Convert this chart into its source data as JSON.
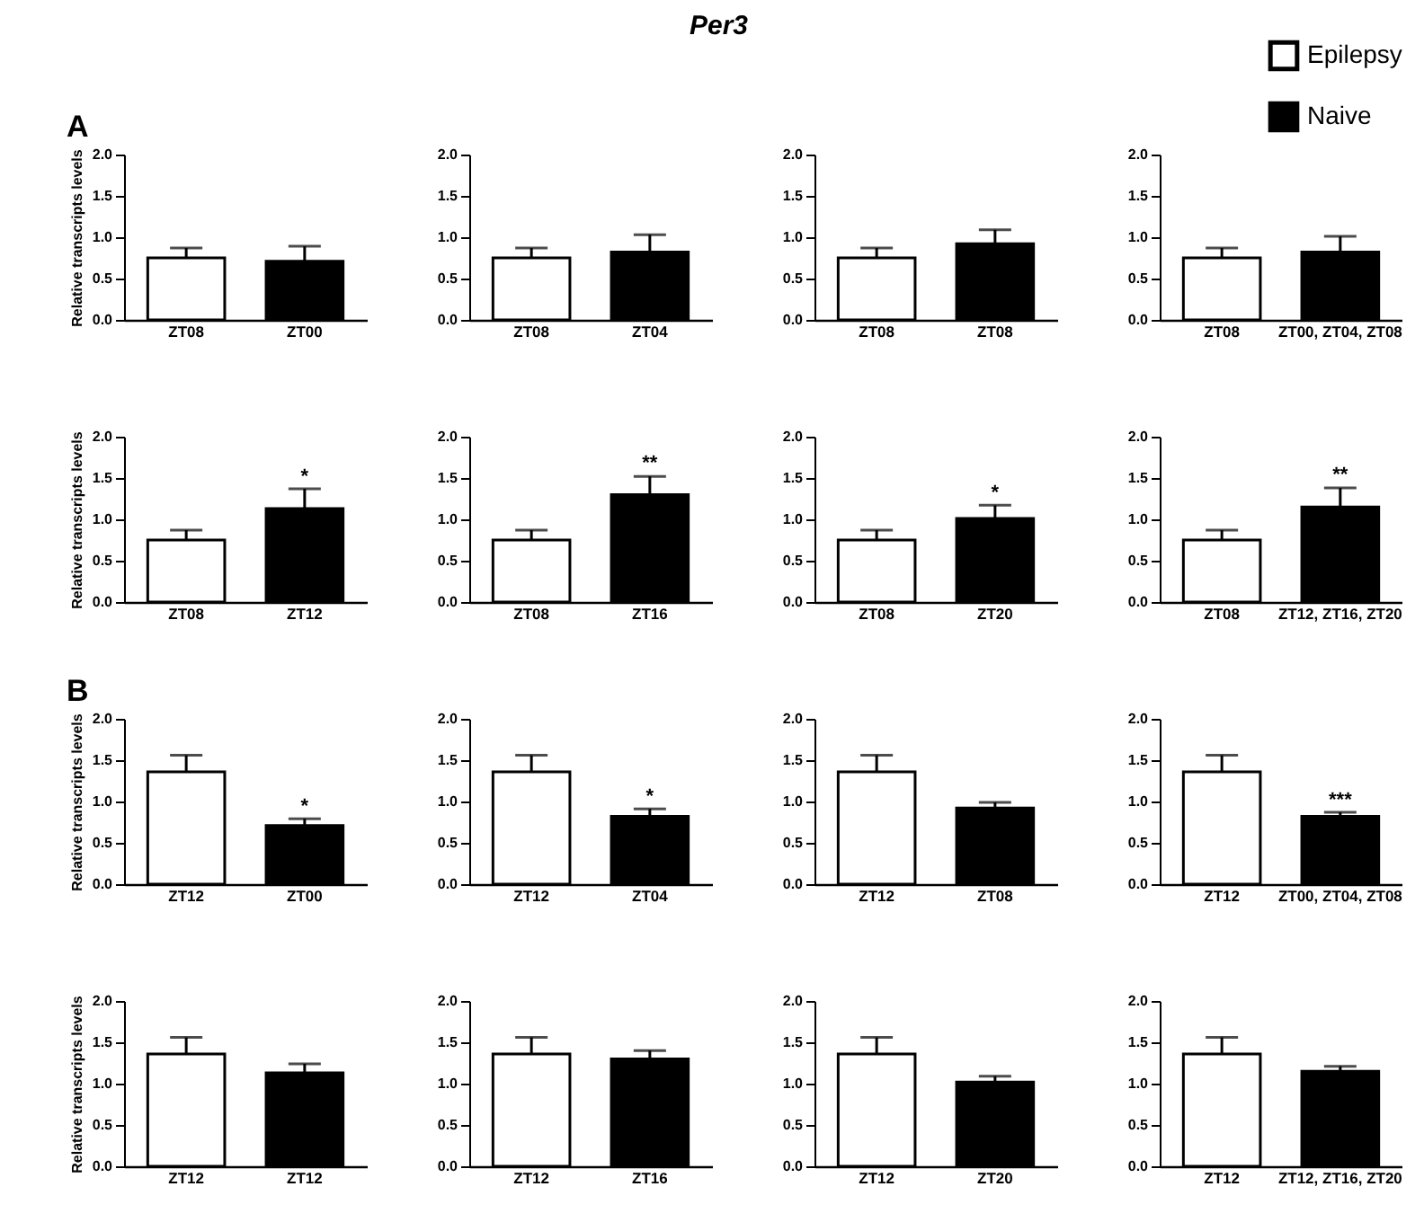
{
  "chart_data": [
    {
      "type": "bar",
      "annotations": [
        "A"
      ],
      "ylabel": "Relative transcripts levels",
      "categories": [
        "ZT08",
        "ZT00"
      ],
      "ylim": [
        0,
        2
      ],
      "yticks": [
        {
          "value": 0,
          "label": "0.0"
        },
        {
          "value": 0.5,
          "label": "0.5"
        },
        {
          "value": 1,
          "label": "1.0"
        },
        {
          "value": 1.5,
          "label": "1.5"
        },
        {
          "value": 2,
          "label": "2.0"
        }
      ],
      "series": [
        {
          "color": "#ffffff",
          "values": [
            0.75,
            null
          ],
          "errors": [
            [
              0.75,
              0.87
            ],
            null
          ]
        },
        {
          "color": "#000000",
          "values": [
            null,
            0.71
          ],
          "errors": [
            null,
            [
              0.71,
              0.89
            ]
          ]
        }
      ]
    },
    {
      "type": "bar",
      "title": "Per3",
      "categories": [
        "ZT08",
        "ZT04"
      ],
      "ylim": [
        0,
        2
      ],
      "yticks": [
        {
          "value": 0,
          "label": "0.0"
        },
        {
          "value": 0.5,
          "label": "0.5"
        },
        {
          "value": 1,
          "label": "1.0"
        },
        {
          "value": 1.5,
          "label": "1.5"
        },
        {
          "value": 2,
          "label": "2.0"
        }
      ],
      "series": [
        {
          "color": "#ffffff",
          "values": [
            0.75,
            null
          ],
          "errors": [
            [
              0.75,
              0.87
            ],
            null
          ]
        },
        {
          "color": "#000000",
          "values": [
            null,
            0.82
          ],
          "errors": [
            null,
            [
              0.82,
              1.03
            ]
          ]
        }
      ]
    },
    {
      "type": "bar",
      "categories": [
        "ZT08",
        "ZT08"
      ],
      "ylim": [
        0,
        2
      ],
      "yticks": [
        {
          "value": 0,
          "label": "0.0"
        },
        {
          "value": 0.5,
          "label": "0.5"
        },
        {
          "value": 1,
          "label": "1.0"
        },
        {
          "value": 1.5,
          "label": "1.5"
        },
        {
          "value": 2,
          "label": "2.0"
        }
      ],
      "series": [
        {
          "color": "#ffffff",
          "values": [
            0.75,
            null
          ],
          "errors": [
            [
              0.75,
              0.87
            ],
            null
          ]
        },
        {
          "color": "#000000",
          "values": [
            null,
            0.92
          ],
          "errors": [
            null,
            [
              0.92,
              1.09
            ]
          ]
        }
      ]
    },
    {
      "type": "bar",
      "categories": [
        "ZT08",
        "ZT00, ZT04, ZT08"
      ],
      "ylim": [
        0,
        2
      ],
      "yticks": [
        {
          "value": 0,
          "label": "0.0"
        },
        {
          "value": 0.5,
          "label": "0.5"
        },
        {
          "value": 1,
          "label": "1.0"
        },
        {
          "value": 1.5,
          "label": "1.5"
        },
        {
          "value": 2,
          "label": "2.0"
        }
      ],
      "legend": "top right",
      "series": [
        {
          "name": "Epilepsy",
          "color": "#ffffff",
          "values": [
            0.75,
            null
          ],
          "errors": [
            [
              0.75,
              0.87
            ],
            null
          ]
        },
        {
          "name": "Naive",
          "color": "#000000",
          "values": [
            null,
            0.82
          ],
          "errors": [
            null,
            [
              0.82,
              1.01
            ]
          ]
        }
      ]
    },
    {
      "type": "bar",
      "ylabel": "Relative transcripts levels",
      "categories": [
        "ZT08",
        "ZT12"
      ],
      "ylim": [
        0,
        2
      ],
      "yticks": [
        {
          "value": 0,
          "label": "0.0"
        },
        {
          "value": 0.5,
          "label": "0.5"
        },
        {
          "value": 1,
          "label": "1.0"
        },
        {
          "value": 1.5,
          "label": "1.5"
        },
        {
          "value": 2,
          "label": "2.0"
        }
      ],
      "annotations": [
        {
          "text": "*",
          "x": "ZT12",
          "y": 1.4
        }
      ],
      "series": [
        {
          "color": "#ffffff",
          "values": [
            0.75,
            null
          ],
          "errors": [
            [
              0.75,
              0.87
            ],
            null
          ]
        },
        {
          "color": "#000000",
          "values": [
            null,
            1.13
          ],
          "errors": [
            null,
            [
              1.13,
              1.37
            ]
          ]
        }
      ]
    },
    {
      "type": "bar",
      "categories": [
        "ZT08",
        "ZT16"
      ],
      "ylim": [
        0,
        2
      ],
      "yticks": [
        {
          "value": 0,
          "label": "0.0"
        },
        {
          "value": 0.5,
          "label": "0.5"
        },
        {
          "value": 1,
          "label": "1.0"
        },
        {
          "value": 1.5,
          "label": "1.5"
        },
        {
          "value": 2,
          "label": "2.0"
        }
      ],
      "annotations": [
        {
          "text": "**",
          "x": "ZT16",
          "y": 1.56
        }
      ],
      "series": [
        {
          "color": "#ffffff",
          "values": [
            0.75,
            null
          ],
          "errors": [
            [
              0.75,
              0.87
            ],
            null
          ]
        },
        {
          "color": "#000000",
          "values": [
            null,
            1.3
          ],
          "errors": [
            null,
            [
              1.3,
              1.52
            ]
          ]
        }
      ]
    },
    {
      "type": "bar",
      "categories": [
        "ZT08",
        "ZT20"
      ],
      "ylim": [
        0,
        2
      ],
      "yticks": [
        {
          "value": 0,
          "label": "0.0"
        },
        {
          "value": 0.5,
          "label": "0.5"
        },
        {
          "value": 1,
          "label": "1.0"
        },
        {
          "value": 1.5,
          "label": "1.5"
        },
        {
          "value": 2,
          "label": "2.0"
        }
      ],
      "annotations": [
        {
          "text": "*",
          "x": "ZT20",
          "y": 1.21
        }
      ],
      "series": [
        {
          "color": "#ffffff",
          "values": [
            0.75,
            null
          ],
          "errors": [
            [
              0.75,
              0.87
            ],
            null
          ]
        },
        {
          "color": "#000000",
          "values": [
            null,
            1.01
          ],
          "errors": [
            null,
            [
              1.01,
              1.17
            ]
          ]
        }
      ]
    },
    {
      "type": "bar",
      "categories": [
        "ZT08",
        "ZT12, ZT16, ZT20"
      ],
      "ylim": [
        0,
        2
      ],
      "yticks": [
        {
          "value": 0,
          "label": "0.0"
        },
        {
          "value": 0.5,
          "label": "0.5"
        },
        {
          "value": 1,
          "label": "1.0"
        },
        {
          "value": 1.5,
          "label": "1.5"
        },
        {
          "value": 2,
          "label": "2.0"
        }
      ],
      "annotations": [
        {
          "text": "**",
          "x": "ZT12, ZT16, ZT20",
          "y": 1.42
        }
      ],
      "series": [
        {
          "color": "#ffffff",
          "values": [
            0.75,
            null
          ],
          "errors": [
            [
              0.75,
              0.87
            ],
            null
          ]
        },
        {
          "color": "#000000",
          "values": [
            null,
            1.15
          ],
          "errors": [
            null,
            [
              1.15,
              1.38
            ]
          ]
        }
      ]
    },
    {
      "type": "bar",
      "annotations": [
        "B",
        {
          "text": "*",
          "x": "ZT00",
          "y": 0.83
        }
      ],
      "ylabel": "Relative transcripts levels",
      "categories": [
        "ZT12",
        "ZT00"
      ],
      "ylim": [
        0,
        2
      ],
      "yticks": [
        {
          "value": 0,
          "label": "0.0"
        },
        {
          "value": 0.5,
          "label": "0.5"
        },
        {
          "value": 1,
          "label": "1.0"
        },
        {
          "value": 1.5,
          "label": "1.5"
        },
        {
          "value": 2,
          "label": "2.0"
        }
      ],
      "series": [
        {
          "color": "#ffffff",
          "values": [
            1.36,
            null
          ],
          "errors": [
            [
              1.36,
              1.56
            ],
            null
          ]
        },
        {
          "color": "#000000",
          "values": [
            null,
            0.71
          ],
          "errors": [
            null,
            [
              0.71,
              0.79
            ]
          ]
        }
      ]
    },
    {
      "type": "bar",
      "categories": [
        "ZT12",
        "ZT04"
      ],
      "ylim": [
        0,
        2
      ],
      "yticks": [
        {
          "value": 0,
          "label": "0.0"
        },
        {
          "value": 0.5,
          "label": "0.5"
        },
        {
          "value": 1,
          "label": "1.0"
        },
        {
          "value": 1.5,
          "label": "1.5"
        },
        {
          "value": 2,
          "label": "2.0"
        }
      ],
      "annotations": [
        {
          "text": "*",
          "x": "ZT04",
          "y": 0.95
        }
      ],
      "series": [
        {
          "color": "#ffffff",
          "values": [
            1.36,
            null
          ],
          "errors": [
            [
              1.36,
              1.56
            ],
            null
          ]
        },
        {
          "color": "#000000",
          "values": [
            null,
            0.82
          ],
          "errors": [
            null,
            [
              0.82,
              0.91
            ]
          ]
        }
      ]
    },
    {
      "type": "bar",
      "categories": [
        "ZT12",
        "ZT08"
      ],
      "ylim": [
        0,
        2
      ],
      "yticks": [
        {
          "value": 0,
          "label": "0.0"
        },
        {
          "value": 0.5,
          "label": "0.5"
        },
        {
          "value": 1,
          "label": "1.0"
        },
        {
          "value": 1.5,
          "label": "1.5"
        },
        {
          "value": 2,
          "label": "2.0"
        }
      ],
      "series": [
        {
          "color": "#ffffff",
          "values": [
            1.36,
            null
          ],
          "errors": [
            [
              1.36,
              1.56
            ],
            null
          ]
        },
        {
          "color": "#000000",
          "values": [
            null,
            0.92
          ],
          "errors": [
            null,
            [
              0.92,
              0.99
            ]
          ]
        }
      ]
    },
    {
      "type": "bar",
      "categories": [
        "ZT12",
        "ZT00, ZT04, ZT08"
      ],
      "ylim": [
        0,
        2
      ],
      "yticks": [
        {
          "value": 0,
          "label": "0.0"
        },
        {
          "value": 0.5,
          "label": "0.5"
        },
        {
          "value": 1,
          "label": "1.0"
        },
        {
          "value": 1.5,
          "label": "1.5"
        },
        {
          "value": 2,
          "label": "2.0"
        }
      ],
      "annotations": [
        {
          "text": "***",
          "x": "ZT00, ZT04, ZT08",
          "y": 0.9
        }
      ],
      "series": [
        {
          "color": "#ffffff",
          "values": [
            1.36,
            null
          ],
          "errors": [
            [
              1.36,
              1.56
            ],
            null
          ]
        },
        {
          "color": "#000000",
          "values": [
            null,
            0.82
          ],
          "errors": [
            null,
            [
              0.82,
              0.87
            ]
          ]
        }
      ]
    },
    {
      "type": "bar",
      "ylabel": "Relative transcripts levels",
      "categories": [
        "ZT12",
        "ZT12"
      ],
      "ylim": [
        0,
        2
      ],
      "yticks": [
        {
          "value": 0,
          "label": "0.0"
        },
        {
          "value": 0.5,
          "label": "0.5"
        },
        {
          "value": 1,
          "label": "1.0"
        },
        {
          "value": 1.5,
          "label": "1.5"
        },
        {
          "value": 2,
          "label": "2.0"
        }
      ],
      "series": [
        {
          "color": "#ffffff",
          "values": [
            1.36,
            null
          ],
          "errors": [
            [
              1.36,
              1.56
            ],
            null
          ]
        },
        {
          "color": "#000000",
          "values": [
            null,
            1.13
          ],
          "errors": [
            null,
            [
              1.13,
              1.24
            ]
          ]
        }
      ]
    },
    {
      "type": "bar",
      "categories": [
        "ZT12",
        "ZT16"
      ],
      "ylim": [
        0,
        2
      ],
      "yticks": [
        {
          "value": 0,
          "label": "0.0"
        },
        {
          "value": 0.5,
          "label": "0.5"
        },
        {
          "value": 1,
          "label": "1.0"
        },
        {
          "value": 1.5,
          "label": "1.5"
        },
        {
          "value": 2,
          "label": "2.0"
        }
      ],
      "series": [
        {
          "color": "#ffffff",
          "values": [
            1.36,
            null
          ],
          "errors": [
            [
              1.36,
              1.56
            ],
            null
          ]
        },
        {
          "color": "#000000",
          "values": [
            null,
            1.3
          ],
          "errors": [
            null,
            [
              1.3,
              1.4
            ]
          ]
        }
      ]
    },
    {
      "type": "bar",
      "categories": [
        "ZT12",
        "ZT20"
      ],
      "ylim": [
        0,
        2
      ],
      "yticks": [
        {
          "value": 0,
          "label": "0.0"
        },
        {
          "value": 0.5,
          "label": "0.5"
        },
        {
          "value": 1,
          "label": "1.0"
        },
        {
          "value": 1.5,
          "label": "1.5"
        },
        {
          "value": 2,
          "label": "2.0"
        }
      ],
      "series": [
        {
          "color": "#ffffff",
          "values": [
            1.36,
            null
          ],
          "errors": [
            [
              1.36,
              1.56
            ],
            null
          ]
        },
        {
          "color": "#000000",
          "values": [
            null,
            1.02
          ],
          "errors": [
            null,
            [
              1.02,
              1.09
            ]
          ]
        }
      ]
    },
    {
      "type": "bar",
      "categories": [
        "ZT12",
        "ZT12, ZT16, ZT20"
      ],
      "ylim": [
        0,
        2
      ],
      "yticks": [
        {
          "value": 0,
          "label": "0.0"
        },
        {
          "value": 0.5,
          "label": "0.5"
        },
        {
          "value": 1,
          "label": "1.0"
        },
        {
          "value": 1.5,
          "label": "1.5"
        },
        {
          "value": 2,
          "label": "2.0"
        }
      ],
      "series": [
        {
          "color": "#ffffff",
          "values": [
            1.36,
            null
          ],
          "errors": [
            [
              1.36,
              1.56
            ],
            null
          ]
        },
        {
          "color": "#000000",
          "values": [
            null,
            1.15
          ],
          "errors": [
            null,
            [
              1.15,
              1.21
            ]
          ]
        }
      ]
    }
  ]
}
